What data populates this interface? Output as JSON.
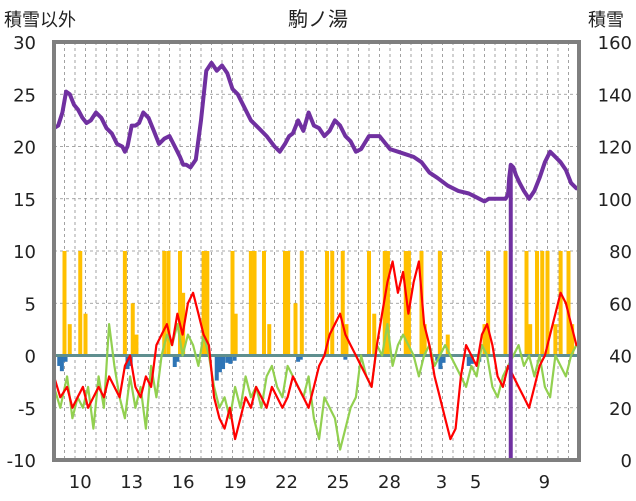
{
  "chart_data": {
    "type": "line",
    "title": "駒ノ湯",
    "ylabel_left": "積雪以外",
    "ylabel_right": "積雪",
    "ylim_left": [
      -10,
      30
    ],
    "ylim_right": [
      0,
      160
    ],
    "yticks_left": [
      "30",
      "25",
      "20",
      "15",
      "10",
      "5",
      "0",
      "-5",
      "-10"
    ],
    "yticks_right": [
      "160",
      "140",
      "120",
      "100",
      "80",
      "60",
      "40",
      "20",
      "0"
    ],
    "xlim": [
      0,
      100
    ],
    "xticks": [
      {
        "label": "10",
        "x": 5.0
      },
      {
        "label": "13",
        "x": 14.8
      },
      {
        "label": "16",
        "x": 24.6
      },
      {
        "label": "19",
        "x": 34.5
      },
      {
        "label": "22",
        "x": 44.3
      },
      {
        "label": "25",
        "x": 54.1
      },
      {
        "label": "28",
        "x": 63.9
      },
      {
        "label": "3",
        "x": 73.8
      },
      {
        "label": "5",
        "x": 80.3
      },
      {
        "label": "9",
        "x": 93.4
      }
    ],
    "grid": true,
    "colors": {
      "snow_depth": "#7030a0",
      "precip_pos": "#ffc000",
      "precip_neg": "#2e75b6",
      "temp_max": "#ff0000",
      "temp_min": "#92d050",
      "axis": "#7f7f7f",
      "zero": "#5f8f8f"
    },
    "series": [
      {
        "id": "snow_depth",
        "axis": "right",
        "x": [
          0,
          0.8,
          1.6,
          2.3,
          3.0,
          3.8,
          4.6,
          5.4,
          6.2,
          7.0,
          8.0,
          9.0,
          10.0,
          11.0,
          12.0,
          13.0,
          13.5,
          14.0,
          14.8,
          15.5,
          16.2,
          17.0,
          18.0,
          19.0,
          20.0,
          21.0,
          22.0,
          23.0,
          24.0,
          24.6,
          25.2,
          26.0,
          27.0,
          28.0,
          29.0,
          30.0,
          31.0,
          32.0,
          33.0,
          34.0,
          35.0,
          36.0,
          37.5,
          39.0,
          40.5,
          42.0,
          43.0,
          44.0,
          44.8,
          45.5,
          46.5,
          47.5,
          48.5,
          49.5,
          50.5,
          51.5,
          52.5,
          53.5,
          54.5,
          55.5,
          56.5,
          57.5,
          58.5,
          60.0,
          62.0,
          64.0,
          65.5,
          67.0,
          68.5,
          70.0,
          71.5,
          73.0,
          75.0,
          77.0,
          79.0,
          80.0,
          81.0,
          82.0,
          82.8,
          83.5,
          84.5,
          85.3,
          86.0,
          86.3,
          86.5,
          86.7,
          87.0,
          87.5,
          88.0,
          88.7,
          89.5,
          90.5,
          91.5,
          92.5,
          93.5,
          94.5,
          95.5,
          96.5,
          97.5,
          98.5,
          99.5
        ],
        "values": [
          127,
          128,
          133,
          141,
          140,
          136,
          134,
          131,
          129,
          130,
          133,
          131,
          127,
          125,
          121,
          120,
          118,
          120,
          128,
          128,
          129,
          133,
          131,
          126,
          121,
          123,
          124,
          120,
          116,
          113,
          113,
          112,
          115,
          130,
          149,
          152,
          149,
          151,
          148,
          142,
          140,
          136,
          130,
          127,
          124,
          120,
          118,
          121,
          124,
          125,
          130,
          126,
          133,
          128,
          127,
          124,
          126,
          130,
          128,
          124,
          122,
          118,
          119,
          124,
          124,
          119,
          118,
          117,
          116,
          114,
          110,
          108,
          105,
          103,
          102,
          101,
          100,
          99,
          100,
          100,
          100,
          100,
          100,
          101,
          102,
          108,
          113,
          112,
          109,
          106,
          103,
          100,
          103,
          108,
          114,
          118,
          116,
          114,
          111,
          106,
          104
        ]
      },
      {
        "id": "temp_max",
        "axis": "left",
        "x": [
          0,
          1.2,
          2.5,
          3.5,
          4.5,
          5.5,
          6.5,
          7.5,
          8.5,
          9.5,
          10.5,
          11.5,
          12.5,
          13.5,
          14.5,
          15.5,
          16.5,
          17.5,
          18.5,
          19.5,
          20.5,
          21.5,
          22.5,
          23.5,
          24.5,
          25.5,
          26.5,
          27.5,
          28.5,
          29.5,
          30.5,
          31.5,
          32.5,
          33.5,
          34.5,
          35.5,
          36.5,
          37.5,
          38.5,
          39.5,
          40.5,
          41.5,
          42.5,
          43.5,
          44.5,
          45.5,
          46.5,
          47.5,
          48.5,
          49.5,
          50.5,
          51.5,
          52.5,
          53.5,
          54.5,
          55.5,
          56.5,
          57.5,
          58.5,
          59.5,
          60.5,
          61.5,
          62.5,
          63.5,
          64.5,
          65.5,
          66.5,
          67.5,
          68.5,
          69.5,
          70.5,
          71.5,
          72.5,
          73.5,
          74.5,
          75.5,
          76.5,
          77.5,
          78.5,
          79.5,
          80.5,
          81.5,
          82.5,
          83.5,
          84.5,
          85.5,
          86.5,
          87.5,
          88.5,
          89.5,
          90.5,
          91.5,
          92.5,
          93.5,
          94.5,
          95.5,
          96.5,
          97.5,
          98.5,
          99.5
        ],
        "values": [
          -2,
          -4,
          -3,
          -5,
          -4,
          -3,
          -5,
          -4,
          -3,
          -4,
          -2,
          -3,
          -4,
          -1,
          0,
          -3,
          -4,
          -2,
          -3,
          1,
          2,
          3,
          1,
          4,
          2,
          5,
          6,
          4,
          2,
          1,
          -4,
          -6,
          -7,
          -5,
          -8,
          -6,
          -4,
          -5,
          -3,
          -4,
          -5,
          -3,
          -4,
          -5,
          -4,
          -2,
          -3,
          -4,
          -5,
          -3,
          -1,
          0,
          2,
          3,
          4,
          2,
          1,
          0,
          -1,
          -2,
          -3,
          1,
          4,
          7,
          9,
          6,
          8,
          4,
          7,
          9,
          3,
          1,
          -2,
          -4,
          -6,
          -8,
          -7,
          -2,
          1,
          0,
          -1,
          2,
          3,
          1,
          -2,
          -3,
          -1,
          -2,
          -3,
          -4,
          -5,
          -3,
          -1,
          0,
          2,
          4,
          6,
          5,
          3,
          1
        ]
      },
      {
        "id": "temp_min",
        "axis": "left",
        "x": [
          0,
          1.2,
          2.5,
          3.5,
          4.5,
          5.5,
          6.5,
          7.5,
          8.5,
          9.5,
          10.5,
          11.5,
          12.5,
          13.5,
          14.5,
          15.5,
          16.5,
          17.5,
          18.5,
          19.5,
          20.5,
          21.5,
          22.5,
          23.5,
          24.5,
          25.5,
          26.5,
          27.5,
          28.5,
          29.5,
          30.5,
          31.5,
          32.5,
          33.5,
          34.5,
          35.5,
          36.5,
          37.5,
          38.5,
          39.5,
          40.5,
          41.5,
          42.5,
          43.5,
          44.5,
          45.5,
          46.5,
          47.5,
          48.5,
          49.5,
          50.5,
          51.5,
          52.5,
          53.5,
          54.5,
          55.5,
          56.5,
          57.5,
          58.5,
          59.5,
          60.5,
          61.5,
          62.5,
          63.5,
          64.5,
          65.5,
          66.5,
          67.5,
          68.5,
          69.5,
          70.5,
          71.5,
          72.5,
          73.5,
          74.5,
          75.5,
          76.5,
          77.5,
          78.5,
          79.5,
          80.5,
          81.5,
          82.5,
          83.5,
          84.5,
          85.5,
          86.5,
          87.5,
          88.5,
          89.5,
          90.5,
          91.5,
          92.5,
          93.5,
          94.5,
          95.5,
          96.5,
          97.5,
          98.5,
          99.5
        ],
        "values": [
          -3,
          -5,
          -2,
          -6,
          -4,
          -5,
          -3,
          -7,
          -2,
          -5,
          3,
          -1,
          -4,
          -6,
          -2,
          -5,
          -3,
          -7,
          -1,
          -4,
          0,
          2,
          1,
          3,
          0,
          2,
          1,
          -1,
          2,
          0,
          -3,
          -5,
          -4,
          -6,
          -3,
          -5,
          -2,
          -4,
          -3,
          -5,
          -2,
          -1,
          -3,
          -4,
          -1,
          -2,
          -3,
          -4,
          -2,
          -6,
          -8,
          -4,
          -5,
          -6,
          -9,
          -7,
          -5,
          -4,
          0,
          -2,
          -3,
          1,
          0,
          3,
          -1,
          1,
          2,
          1,
          0,
          -2,
          0,
          1,
          -1,
          0,
          1,
          0,
          -1,
          -2,
          -3,
          -1,
          -2,
          1,
          0,
          -3,
          -4,
          -2,
          -1,
          0,
          1,
          -1,
          0,
          -2,
          0,
          -3,
          -4,
          0,
          -1,
          -2,
          0,
          1
        ]
      }
    ],
    "precip_bars": {
      "axis": "left",
      "x": [
        2.0,
        3.0,
        5.0,
        6.0,
        13.5,
        15.0,
        15.7,
        21.0,
        21.8,
        24.0,
        24.6,
        28.5,
        29.2,
        34.0,
        34.6,
        37.5,
        38.2,
        40.0,
        41.0,
        44.0,
        44.6,
        46.0,
        47.2,
        52.0,
        53.0,
        55.0,
        55.7,
        60.0,
        61.0,
        63.0,
        63.6,
        67.0,
        67.6,
        70.0,
        70.6,
        73.5,
        75.0,
        82.0,
        82.7,
        86.0,
        87.0,
        90.0,
        90.7,
        92.0,
        93.0,
        94.0,
        95.5,
        96.5,
        98.0,
        98.7
      ],
      "values": [
        10,
        3,
        10,
        4,
        10,
        5,
        2,
        10,
        10,
        10,
        6,
        10,
        10,
        10,
        4,
        10,
        10,
        10,
        3,
        10,
        10,
        5,
        10,
        10,
        10,
        10,
        3,
        10,
        4,
        10,
        10,
        10,
        10,
        10,
        3,
        10,
        2,
        3,
        10,
        10,
        3,
        10,
        3,
        10,
        10,
        10,
        3,
        10,
        10,
        3
      ],
      "neg_x": [
        1.0,
        1.5,
        2.2,
        14.0,
        14.6,
        23.0,
        23.5,
        31.0,
        31.6,
        32.2,
        33.0,
        33.6,
        34.4,
        46.5,
        47.0,
        55.5,
        73.0,
        73.6,
        74.2,
        79.0,
        79.6,
        81.0
      ],
      "neg_values": [
        -1,
        -1.5,
        -0.6,
        -1.3,
        -1,
        -1.1,
        -0.6,
        -2.4,
        -1.6,
        -1.3,
        -0.7,
        -0.8,
        -0.5,
        -0.6,
        -0.4,
        -0.4,
        -0.5,
        -1.3,
        -0.7,
        -1,
        -0.8,
        -0.6
      ]
    },
    "vertical_marker": {
      "x": 87.0,
      "color": "#7030a0"
    }
  }
}
